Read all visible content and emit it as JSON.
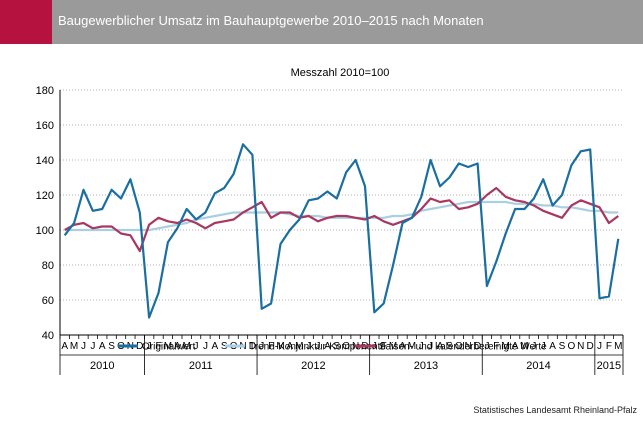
{
  "header": {
    "title": "Baugewerblicher Umsatz im Bauhauptgewerbe 2010–2015 nach Monaten",
    "accent_color": "#b5123f",
    "bar_color": "#9a9a9a"
  },
  "source": "Statistisches Landesamt Rheinland-Pfalz",
  "chart_data": {
    "type": "line",
    "subtitle": "Messzahl 2010=100",
    "ylim": [
      40,
      180
    ],
    "yticks": [
      40,
      60,
      80,
      100,
      120,
      140,
      160,
      180
    ],
    "grid": "horizontal dotted",
    "legend": "bottom",
    "x_months": [
      "A",
      "M",
      "J",
      "J",
      "A",
      "S",
      "O",
      "N",
      "D",
      "J",
      "F",
      "M",
      "A",
      "M",
      "J",
      "J",
      "A",
      "S",
      "O",
      "N",
      "D",
      "J",
      "F",
      "M",
      "A",
      "M",
      "J",
      "J",
      "A",
      "S",
      "O",
      "N",
      "D",
      "J",
      "F",
      "M",
      "A",
      "M",
      "J",
      "J",
      "A",
      "S",
      "O",
      "N",
      "D",
      "J",
      "F",
      "M",
      "A",
      "M",
      "J",
      "J",
      "A",
      "S",
      "O",
      "N",
      "D",
      "J",
      "F",
      "M"
    ],
    "x_years": [
      {
        "label": "2010",
        "start": 0,
        "count": 9
      },
      {
        "label": "2011",
        "start": 9,
        "count": 12
      },
      {
        "label": "2012",
        "start": 21,
        "count": 12
      },
      {
        "label": "2013",
        "start": 33,
        "count": 12
      },
      {
        "label": "2014",
        "start": 45,
        "count": 12
      },
      {
        "label": "2015",
        "start": 57,
        "count": 3
      }
    ],
    "series": [
      {
        "name": "Originalwert",
        "color": "#1a6fa0",
        "values": [
          97,
          104,
          123,
          111,
          112,
          123,
          118,
          129,
          110,
          50,
          64,
          93,
          101,
          112,
          106,
          110,
          121,
          124,
          132,
          149,
          143,
          55,
          58,
          92,
          100,
          106,
          117,
          118,
          122,
          118,
          133,
          140,
          125,
          53,
          58,
          80,
          104,
          107,
          119,
          140,
          125,
          130,
          138,
          136,
          138,
          68,
          82,
          98,
          112,
          112,
          118,
          129,
          114,
          120,
          137,
          145,
          146,
          61,
          62,
          95
        ]
      },
      {
        "name": "Trend-Konjunktur-Komponente",
        "color": "#a8cfe3",
        "values": [
          100,
          100,
          100,
          100,
          100,
          100,
          100,
          100,
          100,
          100,
          101,
          102,
          103,
          104,
          106,
          107,
          108,
          109,
          110,
          110,
          110,
          110,
          110,
          110,
          109,
          108,
          108,
          108,
          107,
          107,
          107,
          107,
          107,
          107,
          107,
          108,
          108,
          109,
          111,
          112,
          113,
          114,
          115,
          116,
          116,
          116,
          116,
          116,
          115,
          115,
          115,
          114,
          114,
          113,
          113,
          112,
          111,
          111,
          110,
          110
        ]
      },
      {
        "name": "Saison- und kalenderbereinigte Werte",
        "color": "#a8385f",
        "values": [
          100,
          103,
          104,
          101,
          102,
          102,
          98,
          97,
          88,
          103,
          107,
          105,
          104,
          106,
          104,
          101,
          104,
          105,
          106,
          110,
          113,
          116,
          107,
          110,
          110,
          107,
          108,
          105,
          107,
          108,
          108,
          107,
          106,
          108,
          105,
          103,
          105,
          107,
          112,
          118,
          116,
          117,
          112,
          113,
          115,
          120,
          124,
          119,
          117,
          116,
          114,
          111,
          109,
          107,
          114,
          117,
          115,
          113,
          104,
          108
        ]
      }
    ]
  }
}
